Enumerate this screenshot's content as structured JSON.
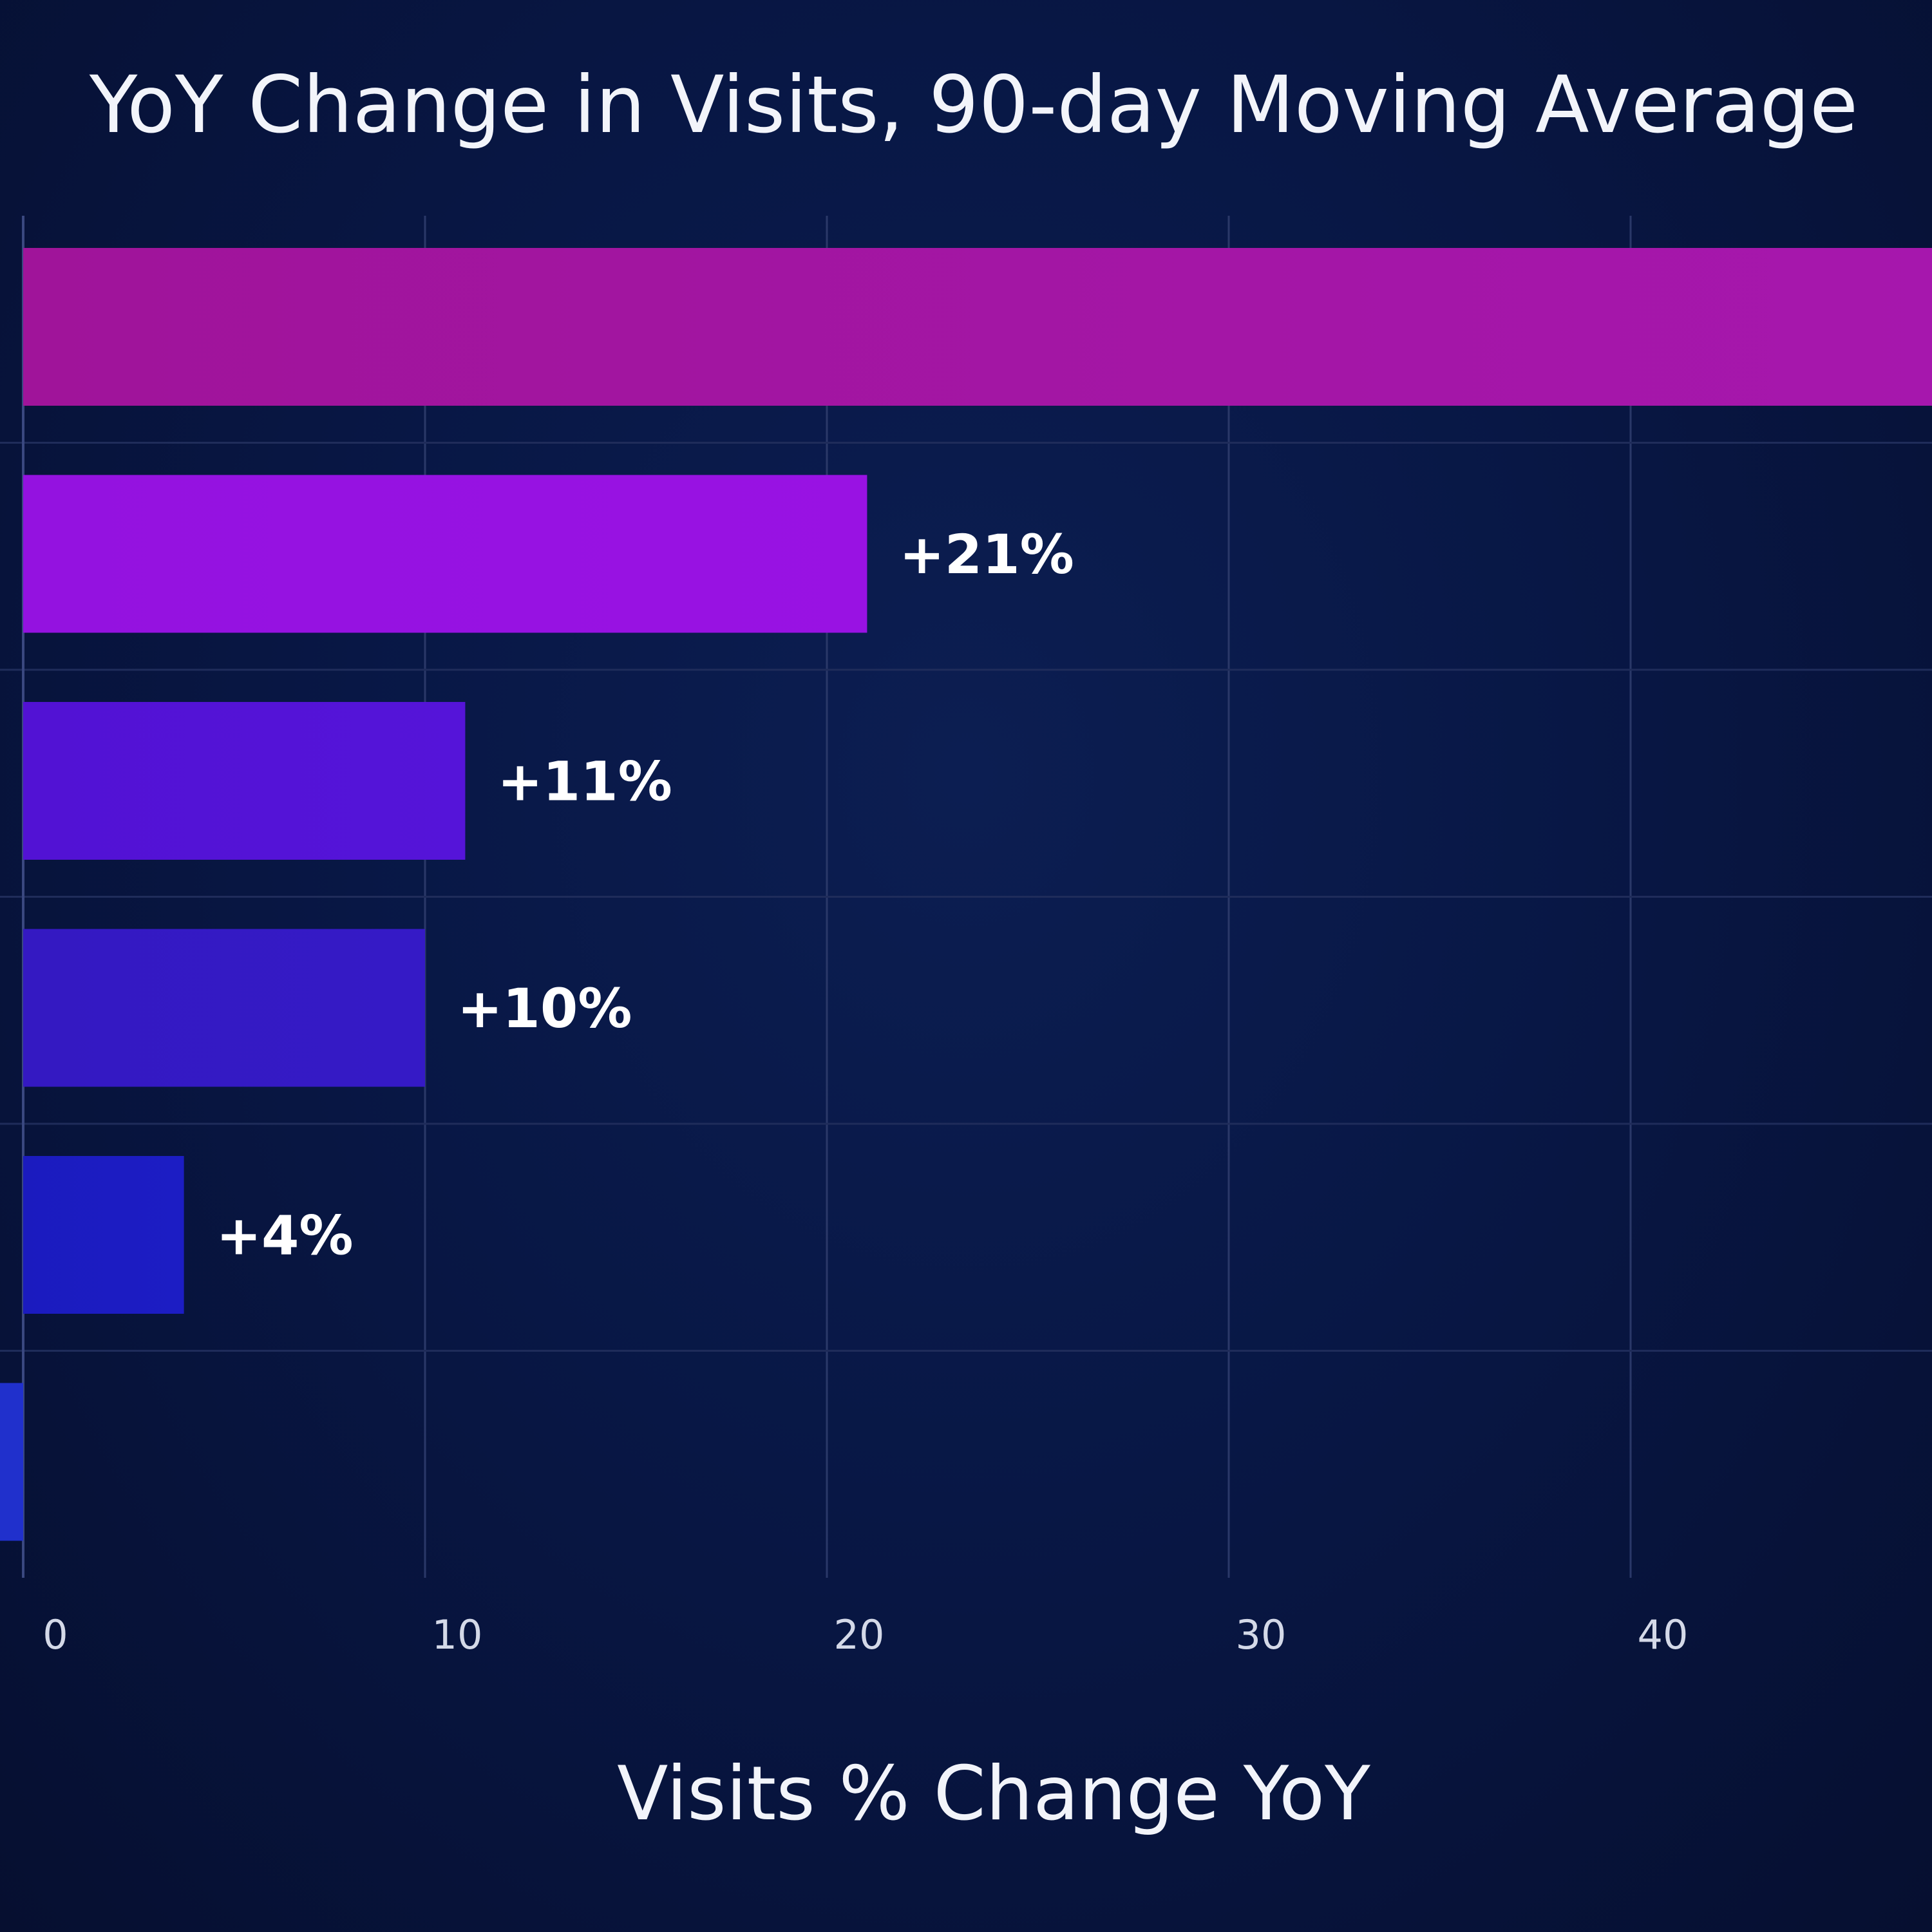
{
  "chart_data": {
    "type": "bar",
    "orientation": "horizontal",
    "title": "YoY Change in Visits, 90-day Moving Average",
    "xlabel": "Visits % Change YoY",
    "ylabel": "",
    "xlim": [
      0,
      48
    ],
    "xticks": [
      0,
      10,
      20,
      30,
      40
    ],
    "grid": true,
    "bars": [
      {
        "value": 48,
        "label": "",
        "color": "#a0149a",
        "color_end": "#a617ad"
      },
      {
        "value": 21,
        "label": "+21%",
        "color": "#9412e0",
        "color_end": "#9912e3"
      },
      {
        "value": 11,
        "label": "+11%",
        "color": "#5212d4",
        "color_end": "#5514d9"
      },
      {
        "value": 10,
        "label": "+10%",
        "color": "#3419c2",
        "color_end": "#351ac6"
      },
      {
        "value": 4,
        "label": "+4%",
        "color": "#1b1bbf",
        "color_end": "#1c1dc4"
      },
      {
        "value": 0,
        "label": "",
        "color": "#2030cc",
        "color_end": "#2030cc"
      }
    ]
  }
}
